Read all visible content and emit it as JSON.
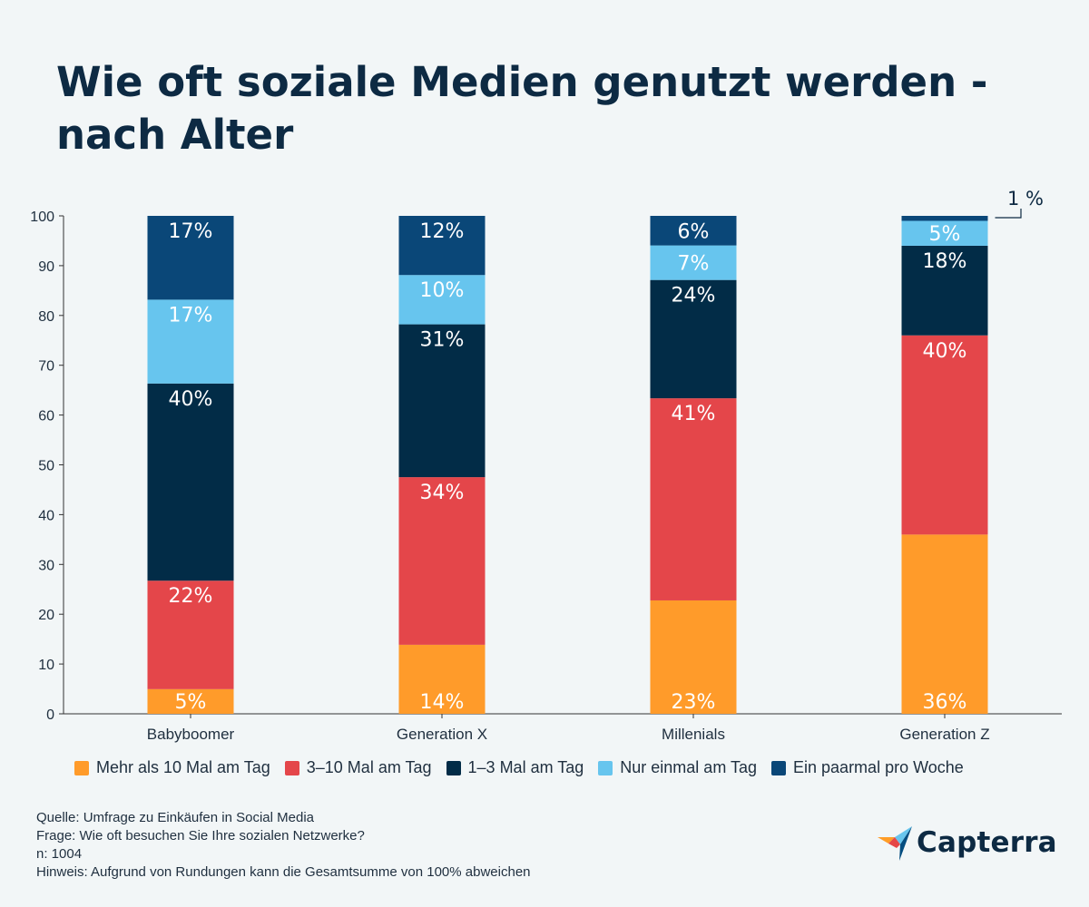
{
  "title": "Wie oft soziale Medien genutzt werden - nach Alter",
  "chart_data": {
    "type": "bar",
    "stacked": true,
    "categories": [
      "Babyboomer",
      "Generation X",
      "Millenials",
      "Generation Z"
    ],
    "series": [
      {
        "name": "Mehr als 10 Mal am Tag",
        "color": "#ff9b2a",
        "values": [
          5,
          14,
          23,
          36
        ],
        "labels": [
          "5%",
          "14%",
          "23%",
          "36%"
        ]
      },
      {
        "name": "3–10 Mal am Tag",
        "color": "#e4464a",
        "values": [
          22,
          34,
          41,
          40
        ],
        "labels": [
          "22%",
          "34%",
          "41%",
          "40%"
        ]
      },
      {
        "name": "1–3 Mal am Tag",
        "color": "#022c47",
        "values": [
          40,
          31,
          24,
          18
        ],
        "labels": [
          "40%",
          "31%",
          "24%",
          "18%"
        ]
      },
      {
        "name": "Nur einmal am Tag",
        "color": "#67c5ee",
        "values": [
          17,
          10,
          7,
          5
        ],
        "labels": [
          "17%",
          "10%",
          "7%",
          "5%"
        ]
      },
      {
        "name": "Ein paarmal pro Woche",
        "color": "#0a4778",
        "values": [
          17,
          12,
          6,
          1
        ],
        "labels": [
          "17%",
          "12%",
          "6%",
          "1 %"
        ]
      }
    ],
    "ylim": [
      0,
      100
    ],
    "yticks": [
      0,
      10,
      20,
      30,
      40,
      50,
      60,
      70,
      80,
      90,
      100
    ],
    "legend_position": "bottom",
    "grid": false
  },
  "notes": {
    "source": "Quelle: Umfrage zu Einkäufen in Social Media",
    "question": "Frage: Wie oft besuchen Sie Ihre sozialen Netzwerke?",
    "n": "n: 1004",
    "hint": "Hinweis: Aufgrund von Rundungen kann die Gesamtsumme von 100% abweichen"
  },
  "logo": {
    "text": "Capterra",
    "colors": [
      "#ff9d28",
      "#68c5ed",
      "#044d80",
      "#e54747"
    ]
  }
}
